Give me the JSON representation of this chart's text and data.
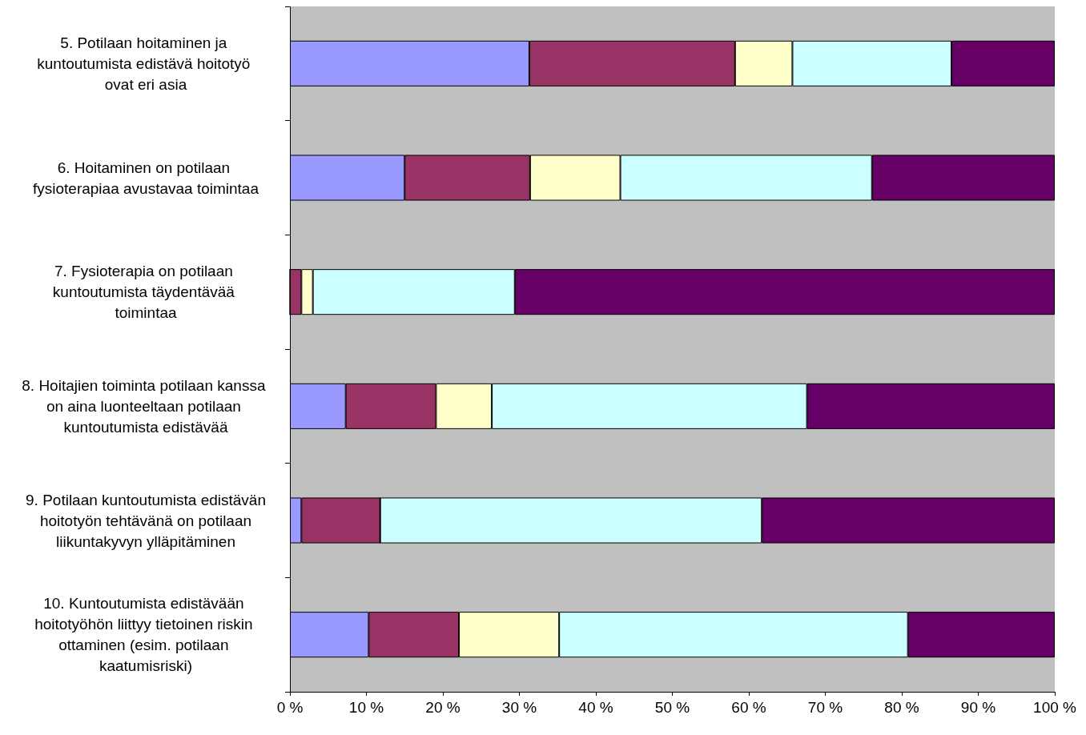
{
  "chart_data": {
    "type": "bar",
    "orientation": "horizontal",
    "stacked": true,
    "grid": false,
    "categories": [
      "5. Potilaan hoitaminen ja kuntoutumista edistävä hoitotyö ovat eri asia",
      "6. Hoitaminen on potilaan fysioterapiaa avustavaa toimintaa",
      "7. Fysioterapia on potilaan kuntoutumista täydentävää toimintaa",
      "8. Hoitajien toiminta potilaan kanssa on aina luonteeltaan potilaan kuntoutumista edistävää",
      "9. Potilaan kuntoutumista edistävän hoitotyön tehtävänä on potilaan liikuntakyvyn ylläpitäminen",
      "10. Kuntoutumista edistävään hoitotyöhön liittyy tietoinen riskin ottaminen (esim. potilaan kaatumisriski)"
    ],
    "series": [
      {
        "color": "#9999ff",
        "values": [
          31.3,
          15.0,
          0,
          7.3,
          1.5,
          10.3
        ]
      },
      {
        "color": "#993366",
        "values": [
          26.9,
          16.4,
          1.5,
          11.8,
          10.3,
          11.8
        ]
      },
      {
        "color": "#ffffcc",
        "values": [
          7.5,
          11.8,
          1.5,
          7.3,
          0,
          13.1
        ]
      },
      {
        "color": "#ccffff",
        "values": [
          20.8,
          32.9,
          26.4,
          41.2,
          49.9,
          45.6
        ]
      },
      {
        "color": "#660066",
        "values": [
          13.5,
          23.9,
          70.6,
          32.4,
          38.3,
          19.2
        ]
      }
    ],
    "xlim": [
      0,
      100
    ],
    "xticks": [
      {
        "value": 0,
        "label": "0 %"
      },
      {
        "value": 10,
        "label": "10 %"
      },
      {
        "value": 20,
        "label": "20 %"
      },
      {
        "value": 30,
        "label": "30 %"
      },
      {
        "value": 40,
        "label": "40 %"
      },
      {
        "value": 50,
        "label": "50 %"
      },
      {
        "value": 60,
        "label": "60 %"
      },
      {
        "value": 70,
        "label": "70 %"
      },
      {
        "value": 80,
        "label": "80 %"
      },
      {
        "value": 90,
        "label": "90 %"
      },
      {
        "value": 100,
        "label": "100 %"
      }
    ]
  }
}
